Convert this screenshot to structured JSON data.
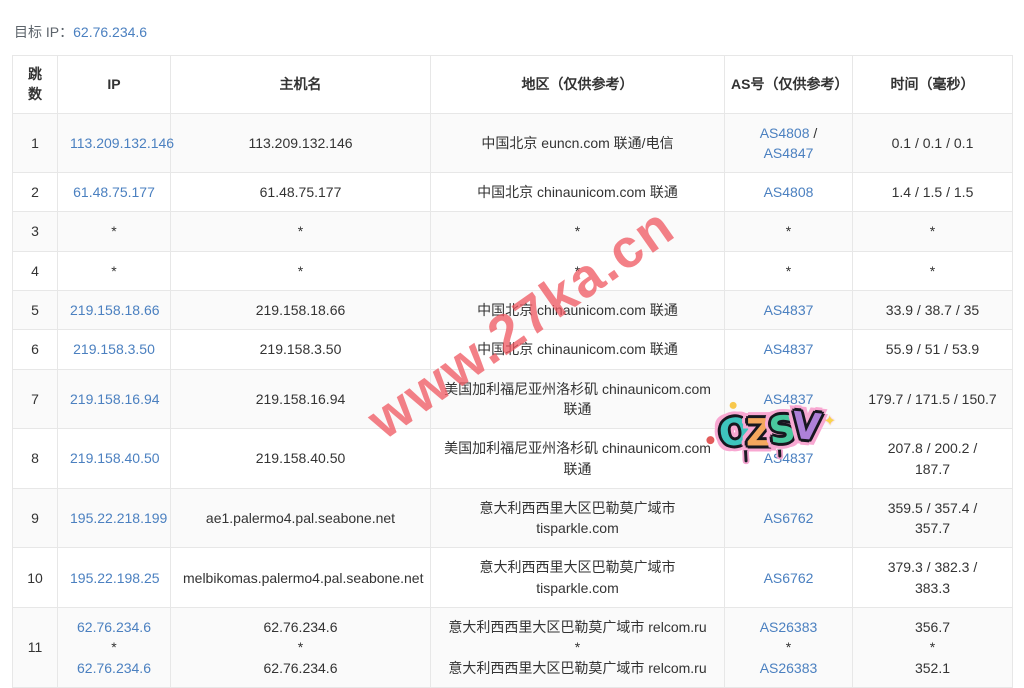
{
  "colors": {
    "link": "#4b80c0",
    "watermark": "#ef555f",
    "row_stripe": "#fafafa"
  },
  "target": {
    "label": "目标 IP：",
    "ip": "62.76.234.6"
  },
  "watermark": {
    "text": "www.27ka.cn"
  },
  "sticker": {
    "text": "OZSV",
    "letters": [
      {
        "char": "O",
        "color": "#3ec4bd"
      },
      {
        "char": "Z",
        "color": "#f4a75e"
      },
      {
        "char": "S",
        "color": "#49c89e"
      },
      {
        "char": "V",
        "color": "#ae80d8"
      }
    ],
    "outline_color": "#f8a8d2",
    "sparkle": "✦"
  },
  "table": {
    "columns": [
      {
        "key": "hop",
        "label": "跳数"
      },
      {
        "key": "ip",
        "label": "IP"
      },
      {
        "key": "host",
        "label": "主机名"
      },
      {
        "key": "region",
        "label": "地区（仅供参考）"
      },
      {
        "key": "asn",
        "label": "AS号（仅供参考）"
      },
      {
        "key": "time",
        "label": "时间（毫秒）"
      }
    ],
    "rows": [
      {
        "hop": "1",
        "ip": [
          {
            "t": "113.209.132.146",
            "link": true
          }
        ],
        "host": "113.209.132.146",
        "region": "中国北京 euncn.com 联通/电信",
        "asn": [
          {
            "t": "AS4808",
            "link": true
          },
          {
            "t": " /"
          },
          {
            "br": true
          },
          {
            "t": "AS4847",
            "link": true
          }
        ],
        "time": "0.1 / 0.1 / 0.1"
      },
      {
        "hop": "2",
        "ip": [
          {
            "t": "61.48.75.177",
            "link": true
          }
        ],
        "host": "61.48.75.177",
        "region": "中国北京 chinaunicom.com 联通",
        "asn": [
          {
            "t": "AS4808",
            "link": true
          }
        ],
        "time": "1.4 / 1.5 / 1.5"
      },
      {
        "hop": "3",
        "ip": "*",
        "host": "*",
        "region": "*",
        "asn": "*",
        "time": "*"
      },
      {
        "hop": "4",
        "ip": "*",
        "host": "*",
        "region": "*",
        "asn": "*",
        "time": "*"
      },
      {
        "hop": "5",
        "ip": [
          {
            "t": "219.158.18.66",
            "link": true
          }
        ],
        "host": "219.158.18.66",
        "region": "中国北京 chinaunicom.com 联通",
        "asn": [
          {
            "t": "AS4837",
            "link": true
          }
        ],
        "time": "33.9 / 38.7 / 35"
      },
      {
        "hop": "6",
        "ip": [
          {
            "t": "219.158.3.50",
            "link": true
          }
        ],
        "host": "219.158.3.50",
        "region": "中国北京 chinaunicom.com 联通",
        "asn": [
          {
            "t": "AS4837",
            "link": true
          }
        ],
        "time": "55.9 / 51 / 53.9"
      },
      {
        "hop": "7",
        "ip": [
          {
            "t": "219.158.16.94",
            "link": true
          }
        ],
        "host": "219.158.16.94",
        "region": [
          {
            "t": "美国加利福尼亚州洛杉矶 chinaunicom.com"
          },
          {
            "br": true
          },
          {
            "t": "联通"
          }
        ],
        "asn": [
          {
            "t": "AS4837",
            "link": true
          }
        ],
        "time": "179.7 / 171.5 / 150.7"
      },
      {
        "hop": "8",
        "ip": [
          {
            "t": "219.158.40.50",
            "link": true
          }
        ],
        "host": "219.158.40.50",
        "region": [
          {
            "t": "美国加利福尼亚州洛杉矶 chinaunicom.com"
          },
          {
            "br": true
          },
          {
            "t": "联通"
          }
        ],
        "asn": [
          {
            "t": "AS4837",
            "link": true
          }
        ],
        "time": [
          {
            "t": "207.8 / 200.2 /"
          },
          {
            "br": true
          },
          {
            "t": "187.7"
          }
        ]
      },
      {
        "hop": "9",
        "ip": [
          {
            "t": "195.22.218.199",
            "link": true
          }
        ],
        "host": "ae1.palermo4.pal.seabone.net",
        "region": [
          {
            "t": "意大利西西里大区巴勒莫广域市"
          },
          {
            "br": true
          },
          {
            "t": "tisparkle.com"
          }
        ],
        "asn": [
          {
            "t": "AS6762",
            "link": true
          }
        ],
        "time": [
          {
            "t": "359.5 / 357.4 /"
          },
          {
            "br": true
          },
          {
            "t": "357.7"
          }
        ]
      },
      {
        "hop": "10",
        "ip": [
          {
            "t": "195.22.198.25",
            "link": true
          }
        ],
        "host": "melbikomas.palermo4.pal.seabone.net",
        "region": [
          {
            "t": "意大利西西里大区巴勒莫广域市"
          },
          {
            "br": true
          },
          {
            "t": "tisparkle.com"
          }
        ],
        "asn": [
          {
            "t": "AS6762",
            "link": true
          }
        ],
        "time": [
          {
            "t": "379.3 / 382.3 /"
          },
          {
            "br": true
          },
          {
            "t": "383.3"
          }
        ]
      },
      {
        "hop": "11",
        "ip": [
          {
            "t": "62.76.234.6",
            "link": true
          },
          {
            "br": true
          },
          {
            "t": "*"
          },
          {
            "br": true
          },
          {
            "t": "62.76.234.6",
            "link": true
          }
        ],
        "host": [
          {
            "t": "62.76.234.6"
          },
          {
            "br": true
          },
          {
            "t": "*"
          },
          {
            "br": true
          },
          {
            "t": "62.76.234.6"
          }
        ],
        "region": [
          {
            "t": "意大利西西里大区巴勒莫广域市 relcom.ru"
          },
          {
            "br": true
          },
          {
            "t": "*"
          },
          {
            "br": true
          },
          {
            "t": "意大利西西里大区巴勒莫广域市 relcom.ru"
          }
        ],
        "asn": [
          {
            "t": "AS26383",
            "link": true
          },
          {
            "br": true
          },
          {
            "t": "*"
          },
          {
            "br": true
          },
          {
            "t": "AS26383",
            "link": true
          }
        ],
        "time": [
          {
            "t": "356.7"
          },
          {
            "br": true
          },
          {
            "t": "*"
          },
          {
            "br": true
          },
          {
            "t": "352.1"
          }
        ]
      }
    ]
  }
}
